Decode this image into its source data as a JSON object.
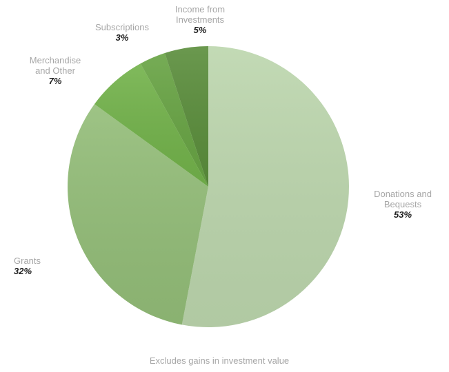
{
  "chart_data": {
    "type": "pie",
    "slices": [
      {
        "label": "Donations and\nBequests",
        "pct_label": "53%",
        "value": 53,
        "color": "#bcd6ad"
      },
      {
        "label": "Grants",
        "pct_label": "32%",
        "value": 32,
        "color": "#93bd78"
      },
      {
        "label": "Merchandise\nand Other",
        "pct_label": "7%",
        "value": 7,
        "color": "#72b24a"
      },
      {
        "label": "Subscriptions",
        "pct_label": "3%",
        "value": 3,
        "color": "#67a343"
      },
      {
        "label": "Income from\nInvestments",
        "pct_label": "5%",
        "value": 5,
        "color": "#5a8d3b"
      }
    ],
    "start": "12 o'clock",
    "direction": "clockwise",
    "note": "Excludes gains in investment value"
  }
}
